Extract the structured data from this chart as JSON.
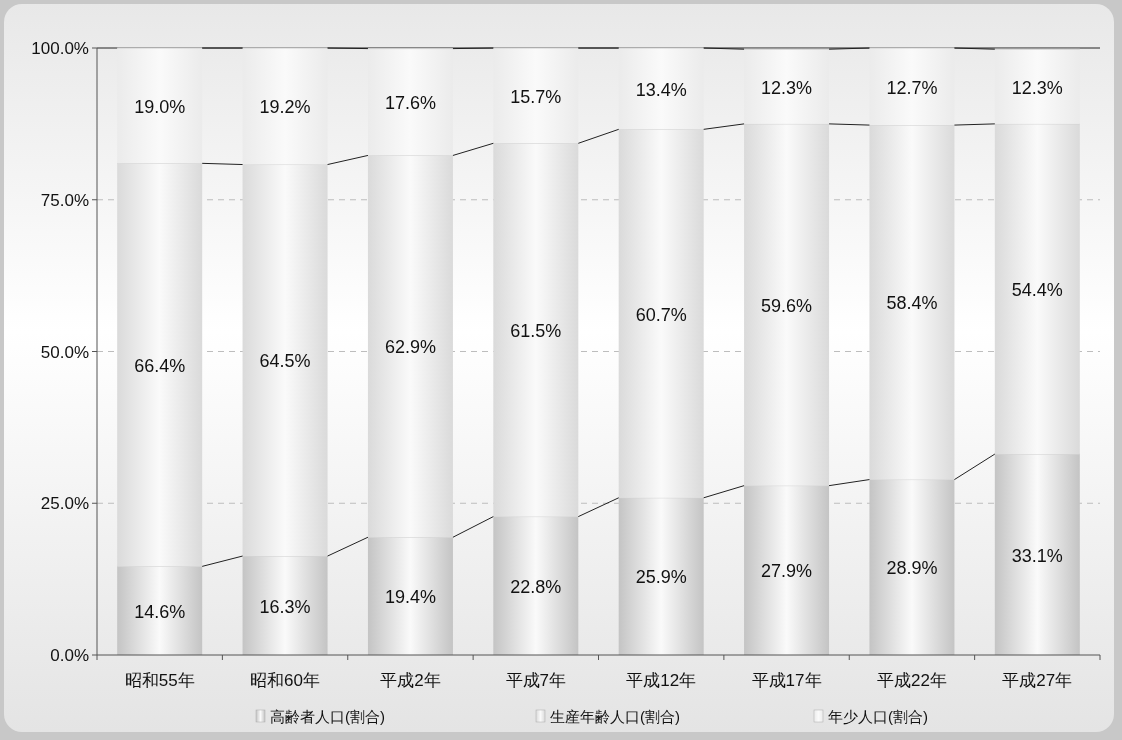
{
  "chart_data": {
    "type": "bar",
    "stacked": true,
    "categories": [
      "昭和55年",
      "昭和60年",
      "平成2年",
      "平成7年",
      "平成12年",
      "平成17年",
      "平成22年",
      "平成27年"
    ],
    "series": [
      {
        "name": "高齢者人口(割合)",
        "color": "#c4c4c4",
        "values": [
          14.6,
          16.3,
          19.4,
          22.8,
          25.9,
          27.9,
          28.9,
          33.1
        ],
        "value_labels": [
          "14.6%",
          "16.3%",
          "19.4%",
          "22.8%",
          "25.9%",
          "27.9%",
          "28.9%",
          "33.1%"
        ]
      },
      {
        "name": "生産年齢人口(割合)",
        "color": "#dadada",
        "values": [
          66.4,
          64.5,
          62.9,
          61.5,
          60.7,
          59.6,
          58.4,
          54.4
        ],
        "value_labels": [
          "66.4%",
          "64.5%",
          "62.9%",
          "61.5%",
          "60.7%",
          "59.6%",
          "58.4%",
          "54.4%"
        ]
      },
      {
        "name": "年少人口(割合)",
        "color": "#ebebeb",
        "values": [
          19.0,
          19.2,
          17.6,
          15.7,
          13.4,
          12.3,
          12.7,
          12.3
        ],
        "value_labels": [
          "19.0%",
          "19.2%",
          "17.6%",
          "15.7%",
          "13.4%",
          "12.3%",
          "12.7%",
          "12.3%"
        ]
      }
    ],
    "ylim": [
      0,
      100
    ],
    "yticks": [
      {
        "value": 0,
        "label": "0.0%"
      },
      {
        "value": 25,
        "label": "25.0%"
      },
      {
        "value": 50,
        "label": "50.0%"
      },
      {
        "value": 75,
        "label": "75.0%"
      },
      {
        "value": 100,
        "label": "100.0%"
      }
    ],
    "grid": "y",
    "legend": "bottom"
  }
}
